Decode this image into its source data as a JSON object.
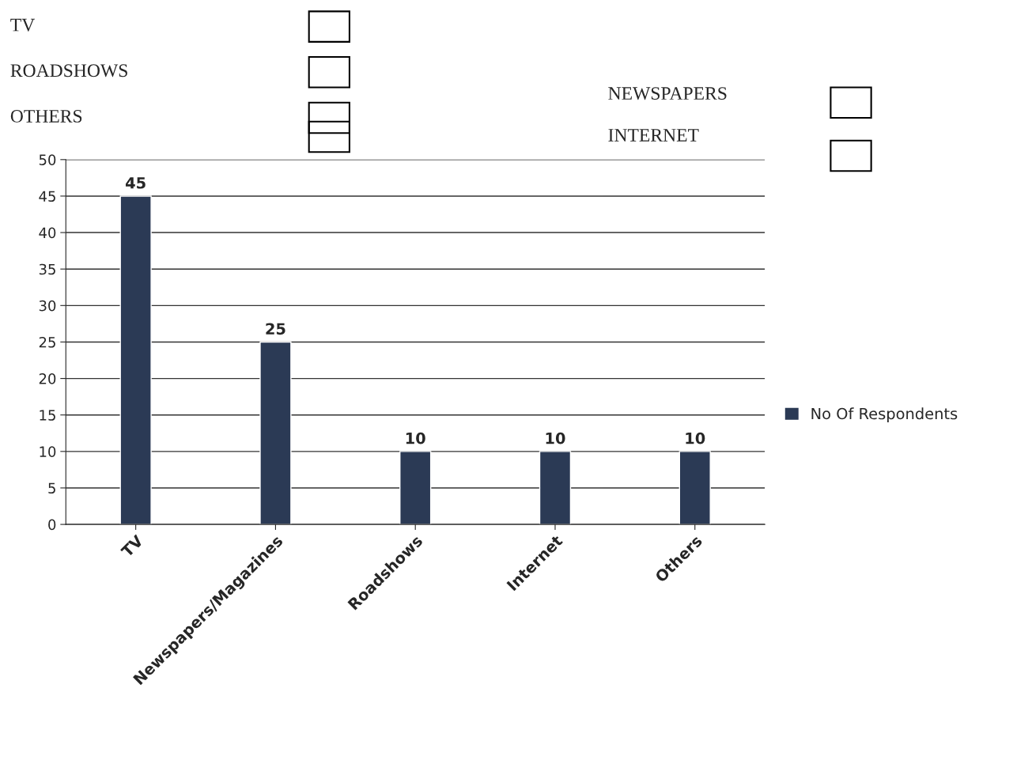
{
  "chart_data": {
    "type": "bar",
    "categories": [
      "TV",
      "Newspapers/Magazines",
      "Roadshows",
      "Internet",
      "Others"
    ],
    "series": [
      {
        "name": "No Of Respondents",
        "color": "#2b3a55",
        "values": [
          45,
          25,
          10,
          10,
          10
        ]
      }
    ],
    "ylim": [
      0,
      50
    ],
    "yticks": [
      0,
      5,
      10,
      15,
      20,
      25,
      30,
      35,
      40,
      45,
      50
    ],
    "grid": "y",
    "legend": "right",
    "data_labels": true,
    "annotations": [
      "TV",
      "ROADSHOWS",
      "OTHERS",
      "NEWSPAPERS",
      "INTERNET"
    ]
  }
}
